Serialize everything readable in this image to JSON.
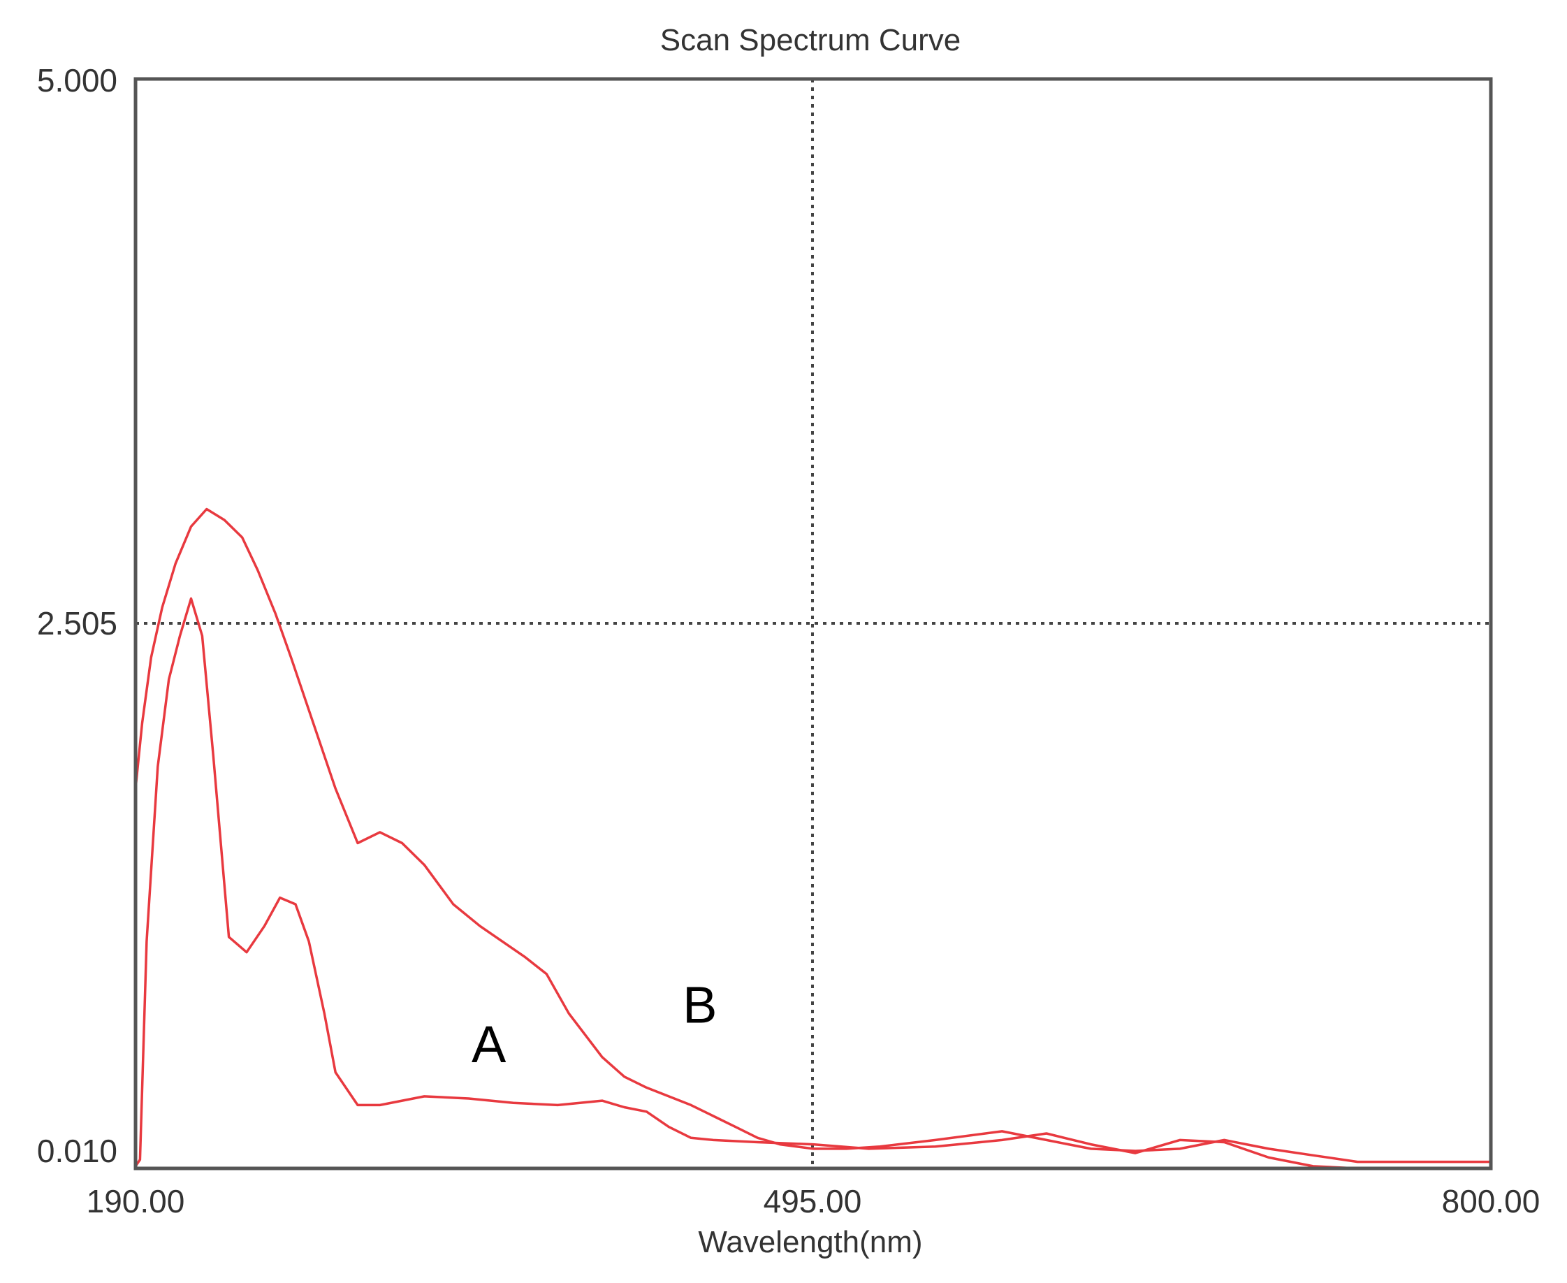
{
  "chart_data": {
    "type": "line",
    "title": "Scan Spectrum Curve",
    "xlabel": "Wavelength(nm)",
    "ylabel": "",
    "xlim": [
      190.0,
      800.0
    ],
    "ylim": [
      0.01,
      5.0
    ],
    "x_tick_labels": [
      "190.00",
      "495.00",
      "800.00"
    ],
    "x_tick_values": [
      190.0,
      495.0,
      800.0
    ],
    "y_tick_labels": [
      "5.000",
      "2.505",
      "0.010"
    ],
    "y_tick_values": [
      5.0,
      2.505,
      0.01
    ],
    "grid": "dotted, at middle ticks only",
    "colors": {
      "series": "#e8393f",
      "frame": "#555555",
      "grid": "#444444"
    },
    "series": [
      {
        "name": "A",
        "x": [
          190,
          192,
          195,
          200,
          205,
          210,
          215,
          220,
          225,
          232,
          240,
          248,
          255,
          262,
          268,
          275,
          280,
          290,
          300,
          310,
          320,
          340,
          360,
          380,
          400,
          410,
          420,
          430,
          440,
          450,
          470,
          495,
          520,
          550,
          580,
          600,
          620,
          640,
          660,
          680,
          700,
          720,
          740,
          760,
          780,
          800
        ],
        "y": [
          0.02,
          0.05,
          1.05,
          1.85,
          2.25,
          2.45,
          2.62,
          2.45,
          1.9,
          1.07,
          1.0,
          1.12,
          1.25,
          1.22,
          1.05,
          0.72,
          0.45,
          0.3,
          0.3,
          0.32,
          0.34,
          0.33,
          0.31,
          0.3,
          0.32,
          0.29,
          0.27,
          0.2,
          0.15,
          0.14,
          0.13,
          0.12,
          0.1,
          0.11,
          0.14,
          0.17,
          0.12,
          0.08,
          0.14,
          0.13,
          0.06,
          0.02,
          0.01,
          0.01,
          0.01,
          0.01
        ]
      },
      {
        "name": "B",
        "x": [
          190,
          193,
          197,
          202,
          208,
          215,
          222,
          230,
          238,
          245,
          253,
          260,
          270,
          280,
          290,
          300,
          310,
          320,
          333,
          345,
          355,
          365,
          375,
          385,
          400,
          410,
          420,
          430,
          440,
          450,
          460,
          470,
          480,
          495,
          510,
          525,
          550,
          580,
          600,
          620,
          640,
          660,
          680,
          700,
          720,
          740,
          760,
          780,
          800
        ],
        "y": [
          1.75,
          2.05,
          2.35,
          2.58,
          2.78,
          2.95,
          3.03,
          2.98,
          2.9,
          2.75,
          2.55,
          2.35,
          2.05,
          1.75,
          1.5,
          1.55,
          1.5,
          1.4,
          1.22,
          1.12,
          1.05,
          0.98,
          0.9,
          0.72,
          0.52,
          0.43,
          0.38,
          0.34,
          0.3,
          0.25,
          0.2,
          0.15,
          0.12,
          0.1,
          0.1,
          0.11,
          0.14,
          0.18,
          0.14,
          0.1,
          0.09,
          0.1,
          0.14,
          0.1,
          0.07,
          0.04,
          0.04,
          0.04,
          0.04
        ]
      }
    ],
    "annotations": [
      {
        "text": "A",
        "x": 349,
        "y": 0.58
      },
      {
        "text": "B",
        "x": 444,
        "y": 0.76
      }
    ]
  }
}
